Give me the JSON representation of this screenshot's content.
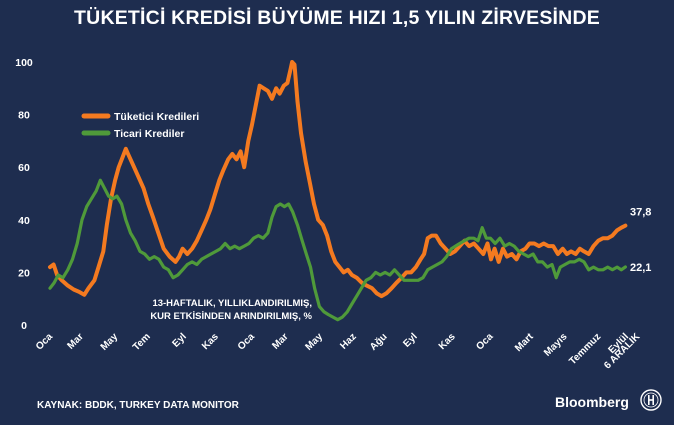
{
  "chart_data": {
    "type": "line",
    "title": "TÜKETİCİ KREDİSİ BÜYÜME HIZI 1,5 YILIN ZİRVESİNDE",
    "ylim": [
      0,
      100
    ],
    "yticks": [
      0,
      20,
      40,
      60,
      80,
      100
    ],
    "xlim": [
      0,
      100
    ],
    "x_ticks": [
      {
        "x": 0.5,
        "label": "Oca"
      },
      {
        "x": 5.7,
        "label": "Mar"
      },
      {
        "x": 11.5,
        "label": "May"
      },
      {
        "x": 17.0,
        "label": "Tem"
      },
      {
        "x": 23.1,
        "label": "Eyl"
      },
      {
        "x": 28.5,
        "label": "Kas"
      },
      {
        "x": 34.6,
        "label": "Oca"
      },
      {
        "x": 40.3,
        "label": "Mar"
      },
      {
        "x": 46.1,
        "label": "May"
      },
      {
        "x": 51.8,
        "label": "Haz"
      },
      {
        "x": 57.0,
        "label": "Ağu"
      },
      {
        "x": 62.1,
        "label": "Eyl"
      },
      {
        "x": 68.5,
        "label": "Kas"
      },
      {
        "x": 74.9,
        "label": "Oca"
      },
      {
        "x": 81.7,
        "label": "Mart"
      },
      {
        "x": 87.4,
        "label": "Mayıs"
      },
      {
        "x": 93.1,
        "label": "Temmuz"
      },
      {
        "x": 97.8,
        "label": "Eylül"
      },
      {
        "x": 99.7,
        "label": "6 ARALIK"
      }
    ],
    "legend_position": "top-left",
    "annotation": "13-HAFTALIK, YILLIKLANDIRILMIŞ,\nKUR ETKİSİNDEN ARINDIRILMIŞ, %",
    "series": [
      {
        "name": "Tüketici Kredileri",
        "color": "#f47a20",
        "end_label": "37,8",
        "points": [
          [
            0,
            22
          ],
          [
            0.6,
            23
          ],
          [
            1.2,
            19
          ],
          [
            2,
            17
          ],
          [
            3,
            15
          ],
          [
            4,
            13.5
          ],
          [
            5,
            12.5
          ],
          [
            5.8,
            11.5
          ],
          [
            6.5,
            14
          ],
          [
            7.5,
            17
          ],
          [
            8.2,
            22
          ],
          [
            9,
            28
          ],
          [
            9.6,
            38
          ],
          [
            10.3,
            48
          ],
          [
            11,
            55
          ],
          [
            11.6,
            60
          ],
          [
            12.3,
            64
          ],
          [
            12.8,
            67
          ],
          [
            13.2,
            65
          ],
          [
            14,
            61
          ],
          [
            15,
            56
          ],
          [
            15.8,
            52
          ],
          [
            16.6,
            46
          ],
          [
            17.4,
            41
          ],
          [
            18.3,
            35
          ],
          [
            19.2,
            29
          ],
          [
            20.2,
            26
          ],
          [
            21.2,
            24
          ],
          [
            21.8,
            26
          ],
          [
            22.4,
            29
          ],
          [
            23.2,
            27
          ],
          [
            24,
            29
          ],
          [
            24.8,
            32
          ],
          [
            25.6,
            36
          ],
          [
            26.4,
            40
          ],
          [
            27.1,
            44
          ],
          [
            27.9,
            50
          ],
          [
            28.6,
            55
          ],
          [
            29.3,
            59
          ],
          [
            30.1,
            63
          ],
          [
            30.8,
            65
          ],
          [
            31.5,
            63
          ],
          [
            32.2,
            66
          ],
          [
            32.8,
            60
          ],
          [
            33.5,
            70
          ],
          [
            34.1,
            76
          ],
          [
            34.8,
            84
          ],
          [
            35.4,
            91
          ],
          [
            36.1,
            90
          ],
          [
            36.8,
            89
          ],
          [
            37.5,
            86
          ],
          [
            38.2,
            90
          ],
          [
            38.8,
            88
          ],
          [
            39.5,
            91
          ],
          [
            40.1,
            92
          ],
          [
            40.6,
            97
          ],
          [
            40.9,
            100
          ],
          [
            41.3,
            99
          ],
          [
            41.8,
            85
          ],
          [
            42.4,
            73
          ],
          [
            43.2,
            62
          ],
          [
            43.9,
            54
          ],
          [
            44.6,
            46
          ],
          [
            45.3,
            40
          ],
          [
            46.1,
            38
          ],
          [
            46.8,
            34
          ],
          [
            47.5,
            28
          ],
          [
            48.2,
            24
          ],
          [
            48.9,
            22
          ],
          [
            49.6,
            20
          ],
          [
            50.3,
            21
          ],
          [
            51,
            19
          ],
          [
            51.8,
            18
          ],
          [
            52.7,
            16
          ],
          [
            53.5,
            15
          ],
          [
            54.4,
            14
          ],
          [
            55.2,
            12
          ],
          [
            56,
            11
          ],
          [
            56.8,
            12
          ],
          [
            57.7,
            14
          ],
          [
            58.5,
            16
          ],
          [
            59.4,
            18
          ],
          [
            60.2,
            20
          ],
          [
            61,
            20
          ],
          [
            61.8,
            22
          ],
          [
            62.6,
            25
          ],
          [
            63.2,
            27
          ],
          [
            63.8,
            33
          ],
          [
            64.5,
            34
          ],
          [
            65.2,
            34
          ],
          [
            66,
            31
          ],
          [
            66.8,
            29
          ],
          [
            67.6,
            27
          ],
          [
            68.4,
            28
          ],
          [
            69.2,
            30
          ],
          [
            70,
            32
          ],
          [
            70.8,
            30
          ],
          [
            71.6,
            31
          ],
          [
            72.4,
            29
          ],
          [
            73.2,
            27
          ],
          [
            73.9,
            31
          ],
          [
            74.5,
            25
          ],
          [
            75.1,
            29
          ],
          [
            75.8,
            24
          ],
          [
            76.5,
            29
          ],
          [
            77.2,
            26
          ],
          [
            78,
            27
          ],
          [
            78.8,
            25
          ],
          [
            79.5,
            28
          ],
          [
            80.3,
            29
          ],
          [
            81,
            31
          ],
          [
            81.8,
            31
          ],
          [
            82.6,
            30
          ],
          [
            83.4,
            31
          ],
          [
            84.2,
            30
          ],
          [
            85,
            30
          ],
          [
            85.8,
            27
          ],
          [
            86.6,
            29
          ],
          [
            87.3,
            27
          ],
          [
            88,
            28
          ],
          [
            88.8,
            27
          ],
          [
            89.5,
            29
          ],
          [
            90.2,
            28
          ],
          [
            91,
            27
          ],
          [
            91.8,
            30
          ],
          [
            92.6,
            32
          ],
          [
            93.4,
            33
          ],
          [
            94.2,
            33
          ],
          [
            95,
            34
          ],
          [
            95.8,
            36
          ],
          [
            96.5,
            37
          ],
          [
            97.2,
            37.8
          ]
        ]
      },
      {
        "name": "Ticari Krediler",
        "color": "#4f9a3a",
        "end_label": "22,1",
        "points": [
          [
            0,
            14
          ],
          [
            0.7,
            16
          ],
          [
            1.4,
            19
          ],
          [
            2.2,
            18
          ],
          [
            3,
            21
          ],
          [
            3.8,
            25
          ],
          [
            4.6,
            31
          ],
          [
            5.4,
            40
          ],
          [
            6.2,
            45
          ],
          [
            7,
            48
          ],
          [
            7.8,
            51
          ],
          [
            8.5,
            55
          ],
          [
            9.2,
            52
          ],
          [
            9.9,
            49
          ],
          [
            10.6,
            48
          ],
          [
            11.3,
            49
          ],
          [
            12.1,
            46
          ],
          [
            12.8,
            40
          ],
          [
            13.6,
            35
          ],
          [
            14.4,
            32
          ],
          [
            15.2,
            28
          ],
          [
            16,
            27
          ],
          [
            16.8,
            25
          ],
          [
            17.6,
            26
          ],
          [
            18.4,
            25
          ],
          [
            19.2,
            22
          ],
          [
            20,
            21
          ],
          [
            20.8,
            18
          ],
          [
            21.6,
            19
          ],
          [
            22.4,
            21
          ],
          [
            23.2,
            23
          ],
          [
            24,
            24
          ],
          [
            24.8,
            23
          ],
          [
            25.6,
            25
          ],
          [
            26.4,
            26
          ],
          [
            27.2,
            27
          ],
          [
            28,
            28
          ],
          [
            28.8,
            29
          ],
          [
            29.6,
            31
          ],
          [
            30.4,
            29
          ],
          [
            31.2,
            30
          ],
          [
            32,
            29
          ],
          [
            32.8,
            30
          ],
          [
            33.6,
            31
          ],
          [
            34.4,
            33
          ],
          [
            35.2,
            34
          ],
          [
            36,
            33
          ],
          [
            36.8,
            35
          ],
          [
            37.5,
            41
          ],
          [
            38.2,
            45
          ],
          [
            38.9,
            46
          ],
          [
            39.6,
            45
          ],
          [
            40.3,
            46
          ],
          [
            41,
            43
          ],
          [
            41.8,
            38
          ],
          [
            42.6,
            32
          ],
          [
            43.3,
            27
          ],
          [
            44,
            22
          ],
          [
            44.7,
            14
          ],
          [
            45.5,
            7
          ],
          [
            46.3,
            5
          ],
          [
            47,
            4
          ],
          [
            47.8,
            3
          ],
          [
            48.6,
            2
          ],
          [
            49.4,
            3
          ],
          [
            50.2,
            5
          ],
          [
            51,
            8
          ],
          [
            51.8,
            11
          ],
          [
            52.6,
            14
          ],
          [
            53.4,
            17
          ],
          [
            54.2,
            18
          ],
          [
            55,
            20
          ],
          [
            55.8,
            19
          ],
          [
            56.6,
            20
          ],
          [
            57.4,
            19
          ],
          [
            58.2,
            21
          ],
          [
            59,
            19
          ],
          [
            59.8,
            17
          ],
          [
            60.6,
            17
          ],
          [
            61.4,
            17
          ],
          [
            62.2,
            17
          ],
          [
            63,
            18
          ],
          [
            63.8,
            21
          ],
          [
            64.6,
            22
          ],
          [
            65.4,
            23
          ],
          [
            66.2,
            24
          ],
          [
            67,
            26
          ],
          [
            67.8,
            29
          ],
          [
            68.5,
            30
          ],
          [
            69.2,
            31
          ],
          [
            70,
            32
          ],
          [
            70.8,
            33
          ],
          [
            71.6,
            33
          ],
          [
            72.3,
            32
          ],
          [
            73,
            37
          ],
          [
            73.7,
            33
          ],
          [
            74.4,
            33
          ],
          [
            75.2,
            31
          ],
          [
            76,
            33
          ],
          [
            76.8,
            30
          ],
          [
            77.6,
            31
          ],
          [
            78.4,
            30
          ],
          [
            79.2,
            28
          ],
          [
            80,
            27
          ],
          [
            80.8,
            26
          ],
          [
            81.6,
            27
          ],
          [
            82.4,
            24
          ],
          [
            83.2,
            24
          ],
          [
            84,
            22
          ],
          [
            84.8,
            23
          ],
          [
            85.5,
            18
          ],
          [
            86.2,
            22
          ],
          [
            87,
            23
          ],
          [
            87.8,
            24
          ],
          [
            88.6,
            24
          ],
          [
            89.4,
            25
          ],
          [
            90.2,
            24
          ],
          [
            91,
            21
          ],
          [
            91.8,
            22
          ],
          [
            92.6,
            21
          ],
          [
            93.4,
            21
          ],
          [
            94.2,
            22
          ],
          [
            95,
            21
          ],
          [
            95.8,
            22
          ],
          [
            96.5,
            21
          ],
          [
            97.2,
            22.1
          ]
        ]
      }
    ]
  },
  "source": "KAYNAK: BDDK, TURKEY DATA MONITOR",
  "brand": "Bloomberg"
}
